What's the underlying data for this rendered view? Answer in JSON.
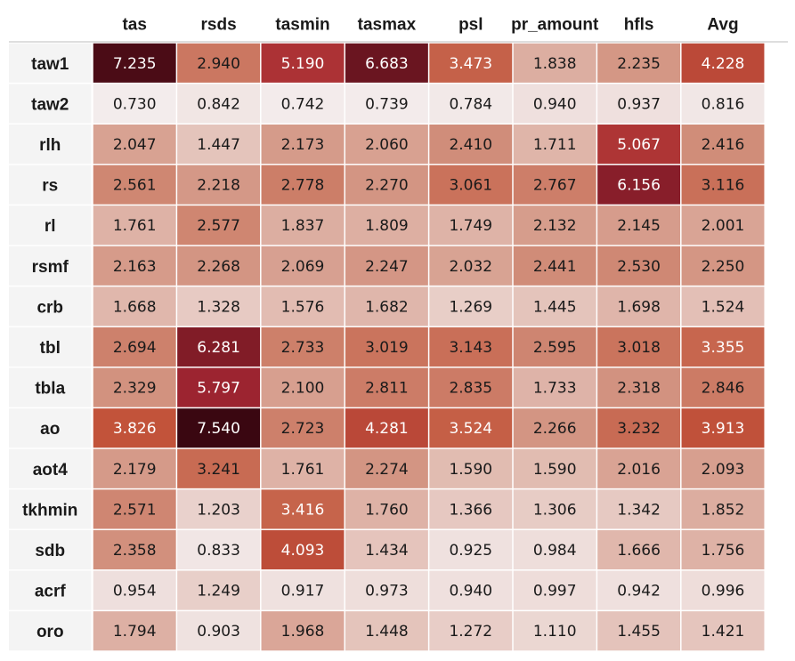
{
  "chart_data": {
    "type": "heatmap",
    "columns": [
      "tas",
      "rsds",
      "tasmin",
      "tasmax",
      "psl",
      "pr_amount",
      "hfls",
      "Avg"
    ],
    "rows": [
      "taw1",
      "taw2",
      "rlh",
      "rs",
      "rl",
      "rsmf",
      "crb",
      "tbl",
      "tbla",
      "ao",
      "aot4",
      "tkhmin",
      "sdb",
      "acrf",
      "oro"
    ],
    "values": [
      [
        7.235,
        2.94,
        5.19,
        6.683,
        3.473,
        1.838,
        2.235,
        4.228
      ],
      [
        0.73,
        0.842,
        0.742,
        0.739,
        0.784,
        0.94,
        0.937,
        0.816
      ],
      [
        2.047,
        1.447,
        2.173,
        2.06,
        2.41,
        1.711,
        5.067,
        2.416
      ],
      [
        2.561,
        2.218,
        2.778,
        2.27,
        3.061,
        2.767,
        6.156,
        3.116
      ],
      [
        1.761,
        2.577,
        1.837,
        1.809,
        1.749,
        2.132,
        2.145,
        2.001
      ],
      [
        2.163,
        2.268,
        2.069,
        2.247,
        2.032,
        2.441,
        2.53,
        2.25
      ],
      [
        1.668,
        1.328,
        1.576,
        1.682,
        1.269,
        1.445,
        1.698,
        1.524
      ],
      [
        2.694,
        6.281,
        2.733,
        3.019,
        3.143,
        2.595,
        3.018,
        3.355
      ],
      [
        2.329,
        5.797,
        2.1,
        2.811,
        2.835,
        1.733,
        2.318,
        2.846
      ],
      [
        3.826,
        7.54,
        2.723,
        4.281,
        3.524,
        2.266,
        3.232,
        3.913
      ],
      [
        2.179,
        3.241,
        1.761,
        2.274,
        1.59,
        1.59,
        2.016,
        2.093
      ],
      [
        2.571,
        1.203,
        3.416,
        1.76,
        1.366,
        1.306,
        1.342,
        1.852
      ],
      [
        2.358,
        0.833,
        4.093,
        1.434,
        0.925,
        0.984,
        1.666,
        1.756
      ],
      [
        0.954,
        1.249,
        0.917,
        0.973,
        0.94,
        0.997,
        0.942,
        0.996
      ],
      [
        1.794,
        0.903,
        1.968,
        1.448,
        1.272,
        1.11,
        1.455,
        1.421
      ]
    ],
    "value_format": "%.3f",
    "color_range": [
      0.73,
      7.54
    ],
    "colors": {
      "low": "#f3ecec",
      "mid": "#d08c78",
      "high": "#c2543a",
      "darker": "#a52733",
      "max": "#3a0711",
      "text_dark": "#1a1a1a",
      "text_light": "#ffffff",
      "row_header_bg": "#f4f4f4"
    }
  }
}
